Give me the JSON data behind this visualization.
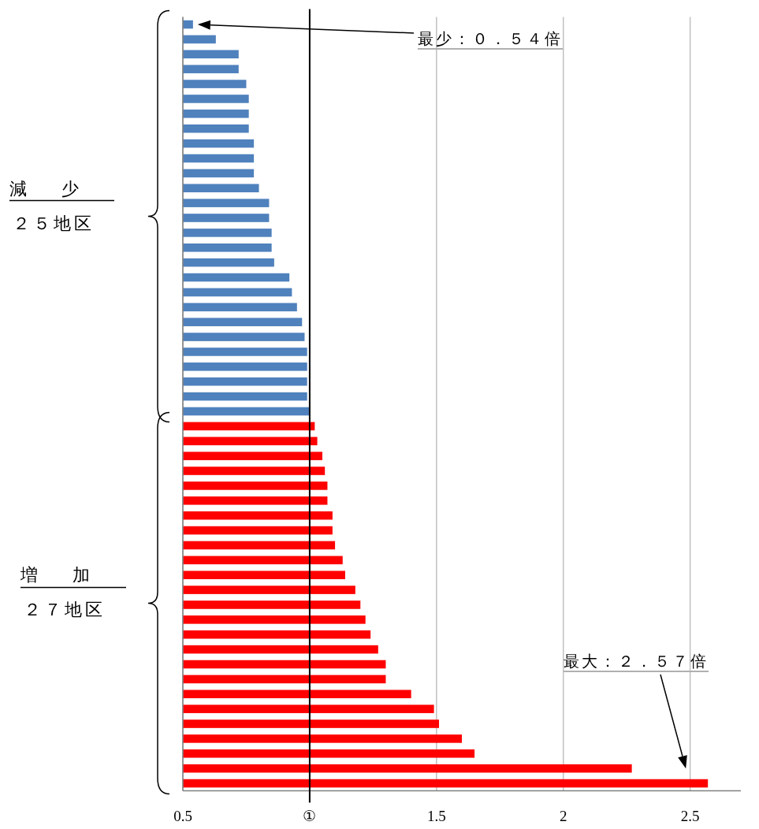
{
  "chart_data": {
    "type": "bar",
    "orientation": "horizontal",
    "categories": [
      null,
      null,
      null,
      null,
      null,
      null,
      null,
      null,
      null,
      null,
      null,
      null,
      null,
      null,
      null,
      null,
      null,
      null,
      null,
      null,
      null,
      null,
      null,
      null,
      null,
      null,
      null,
      null,
      null,
      null,
      null,
      null,
      null,
      null,
      null,
      null,
      null,
      null,
      null,
      null,
      null,
      null,
      null,
      null,
      null,
      null,
      null,
      null,
      null,
      null,
      null,
      null
    ],
    "values": [
      0.54,
      0.63,
      0.72,
      0.72,
      0.75,
      0.76,
      0.76,
      0.76,
      0.78,
      0.78,
      0.78,
      0.8,
      0.84,
      0.84,
      0.85,
      0.85,
      0.86,
      0.92,
      0.93,
      0.95,
      0.97,
      0.98,
      0.99,
      0.99,
      0.99,
      0.99,
      1.0,
      1.02,
      1.03,
      1.05,
      1.06,
      1.07,
      1.07,
      1.09,
      1.09,
      1.1,
      1.13,
      1.14,
      1.18,
      1.2,
      1.22,
      1.24,
      1.27,
      1.3,
      1.3,
      1.4,
      1.49,
      1.51,
      1.6,
      1.65,
      2.27,
      2.57
    ],
    "colors": [
      "#4f81bd",
      "#4f81bd",
      "#4f81bd",
      "#4f81bd",
      "#4f81bd",
      "#4f81bd",
      "#4f81bd",
      "#4f81bd",
      "#4f81bd",
      "#4f81bd",
      "#4f81bd",
      "#4f81bd",
      "#4f81bd",
      "#4f81bd",
      "#4f81bd",
      "#4f81bd",
      "#4f81bd",
      "#4f81bd",
      "#4f81bd",
      "#4f81bd",
      "#4f81bd",
      "#4f81bd",
      "#4f81bd",
      "#4f81bd",
      "#4f81bd",
      "#4f81bd",
      "#4f81bd",
      "#ff0000",
      "#ff0000",
      "#ff0000",
      "#ff0000",
      "#ff0000",
      "#ff0000",
      "#ff0000",
      "#ff0000",
      "#ff0000",
      "#ff0000",
      "#ff0000",
      "#ff0000",
      "#ff0000",
      "#ff0000",
      "#ff0000",
      "#ff0000",
      "#ff0000",
      "#ff0000",
      "#ff0000",
      "#ff0000",
      "#ff0000",
      "#ff0000",
      "#ff0000",
      "#ff0000",
      "#ff0000"
    ],
    "xlim": [
      0.5,
      2.7
    ],
    "xticks": [
      0.5,
      {
        "value": 1,
        "label": "①"
      },
      1.5,
      2,
      2.5
    ],
    "grid": "x",
    "ref_lines": [
      {
        "axis": "x",
        "value": 1,
        "color": "#000000"
      }
    ],
    "annotations": [
      "最少：０．５４倍",
      "最大：２．５７倍",
      "減　　少",
      "２５地区",
      "増　　加",
      "２７地区"
    ]
  }
}
